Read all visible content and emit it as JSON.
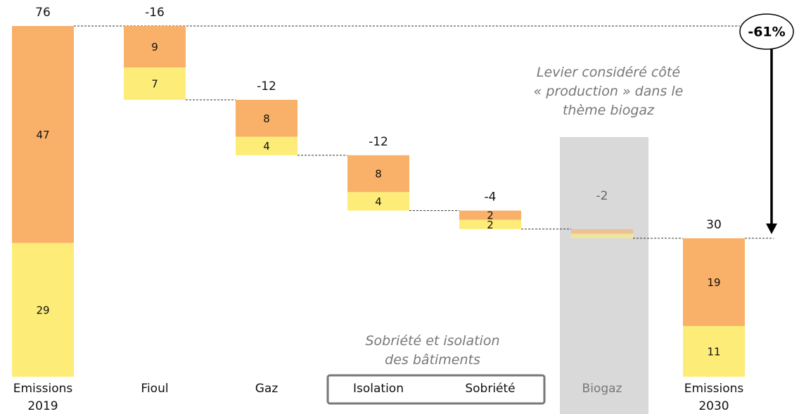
{
  "chart_data": {
    "type": "waterfall",
    "categories": [
      "Emissions 2019",
      "Fioul",
      "Gaz",
      "Isolation",
      "Sobriété",
      "Biogaz",
      "Emissions 2030"
    ],
    "measures": [
      "absolute",
      "relative",
      "relative",
      "relative",
      "relative",
      "relative",
      "absolute"
    ],
    "totals": [
      76,
      -16,
      -12,
      -12,
      -4,
      -2,
      30
    ],
    "muted": [
      false,
      false,
      false,
      false,
      false,
      true,
      false
    ],
    "series": [
      {
        "color": "#f9b068",
        "values": [
          47,
          9,
          8,
          8,
          2,
          1,
          19
        ],
        "value_labels": [
          "47",
          "9",
          "8",
          "8",
          "2",
          null,
          "19"
        ]
      },
      {
        "color": "#fded78",
        "values": [
          29,
          7,
          4,
          4,
          2,
          1,
          11
        ],
        "value_labels": [
          "29",
          "7",
          "4",
          "4",
          "2",
          null,
          "11"
        ]
      }
    ],
    "ylim": [
      0,
      76
    ],
    "change_label": "-61%",
    "group_note": [
      "Sobriété et isolation",
      "des bâtiments"
    ],
    "biogaz_note": [
      "Levier considéré côté",
      "« production » dans le",
      "thème biogaz"
    ]
  }
}
